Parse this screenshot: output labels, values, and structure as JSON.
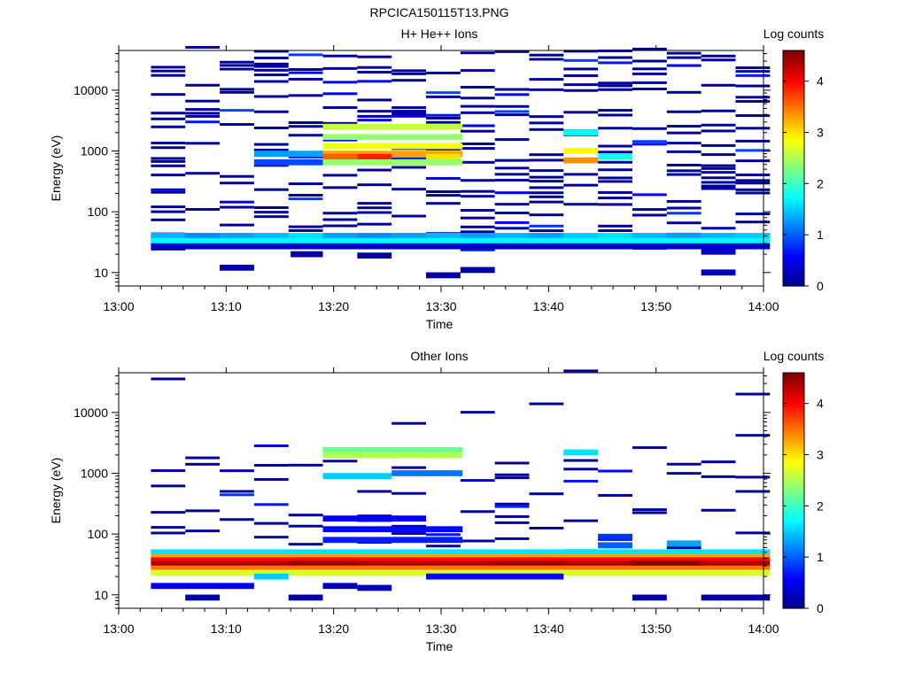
{
  "figure_title": "RPCICA150115T13.PNG",
  "colormap": [
    "#00008f",
    "#0000ff",
    "#0080ff",
    "#00ffff",
    "#80ff80",
    "#ffff00",
    "#ff8000",
    "#ff0000",
    "#800000"
  ],
  "chart_data": [
    {
      "type": "heatmap",
      "title": "H+ He++ Ions",
      "xlabel": "Time",
      "ylabel": "Energy (eV)",
      "x_ticks": [
        "13:00",
        "13:10",
        "13:20",
        "13:30",
        "13:40",
        "13:50",
        "14:00"
      ],
      "y_ticks": [
        "10",
        "100",
        "1000",
        "10000"
      ],
      "y_scale": "log",
      "ylim": [
        6,
        45000
      ],
      "colorbar": {
        "label": "Log counts",
        "ticks": [
          "0",
          "1",
          "2",
          "3",
          "4"
        ],
        "range": [
          0,
          4.6
        ]
      },
      "time_columns": [
        "13:03",
        "13:06",
        "13:09",
        "13:12",
        "13:16",
        "13:19",
        "13:22",
        "13:25",
        "13:28",
        "13:31",
        "13:35",
        "13:38",
        "13:41",
        "13:44",
        "13:47",
        "13:50",
        "13:54",
        "13:57",
        "14:00"
      ],
      "cells": [
        {
          "t0": 3.0,
          "t1": 6.2,
          "e": 40,
          "v": 1.4
        },
        {
          "t0": 6.2,
          "t1": 9.4,
          "e": 40,
          "v": 1.2
        },
        {
          "t0": 9.4,
          "t1": 12.6,
          "e": 40,
          "v": 1.3
        },
        {
          "t0": 12.6,
          "t1": 15.8,
          "e": 40,
          "v": 1.4
        },
        {
          "t0": 15.8,
          "t1": 19.0,
          "e": 40,
          "v": 1.6
        },
        {
          "t0": 19.0,
          "t1": 22.2,
          "e": 40,
          "v": 1.3
        },
        {
          "t0": 22.2,
          "t1": 25.4,
          "e": 40,
          "v": 1.2
        },
        {
          "t0": 25.4,
          "t1": 28.6,
          "e": 40,
          "v": 1.3
        },
        {
          "t0": 28.6,
          "t1": 31.8,
          "e": 40,
          "v": 1.4
        },
        {
          "t0": 31.8,
          "t1": 35.0,
          "e": 40,
          "v": 1.3
        },
        {
          "t0": 35.0,
          "t1": 38.2,
          "e": 40,
          "v": 1.4
        },
        {
          "t0": 38.2,
          "t1": 41.4,
          "e": 40,
          "v": 1.3
        },
        {
          "t0": 41.4,
          "t1": 44.6,
          "e": 40,
          "v": 1.5
        },
        {
          "t0": 44.6,
          "t1": 47.8,
          "e": 40,
          "v": 1.6
        },
        {
          "t0": 47.8,
          "t1": 51.0,
          "e": 40,
          "v": 1.4
        },
        {
          "t0": 51.0,
          "t1": 54.2,
          "e": 40,
          "v": 1.3
        },
        {
          "t0": 54.2,
          "t1": 57.4,
          "e": 40,
          "v": 1.4
        },
        {
          "t0": 57.4,
          "t1": 60.6,
          "e": 40,
          "v": 1.5
        },
        {
          "t0": 3.0,
          "t1": 60.6,
          "e": 33,
          "v": 1.7
        },
        {
          "t0": 3.0,
          "t1": 60.6,
          "e": 27,
          "v": 0.3
        },
        {
          "t0": 19.0,
          "t1": 32.0,
          "e": 2500,
          "v": 2.6
        },
        {
          "t0": 19.0,
          "t1": 32.0,
          "e": 1700,
          "v": 2.4
        },
        {
          "t0": 19.0,
          "t1": 32.0,
          "e": 1200,
          "v": 2.8
        },
        {
          "t0": 19.0,
          "t1": 32.0,
          "e": 900,
          "v": 3.3
        },
        {
          "t0": 22.2,
          "t1": 25.4,
          "e": 800,
          "v": 3.9
        },
        {
          "t0": 19.0,
          "t1": 22.2,
          "e": 800,
          "v": 3.6
        },
        {
          "t0": 28.6,
          "t1": 31.8,
          "e": 800,
          "v": 3.0
        },
        {
          "t0": 19.0,
          "t1": 32.0,
          "e": 650,
          "v": 2.4
        },
        {
          "t0": 12.6,
          "t1": 19.0,
          "e": 900,
          "v": 1.3
        },
        {
          "t0": 12.6,
          "t1": 19.0,
          "e": 650,
          "v": 0.9
        },
        {
          "t0": 41.4,
          "t1": 44.6,
          "e": 2000,
          "v": 1.7
        },
        {
          "t0": 41.4,
          "t1": 44.6,
          "e": 1000,
          "v": 2.9
        },
        {
          "t0": 41.4,
          "t1": 44.6,
          "e": 700,
          "v": 3.4
        },
        {
          "t0": 44.6,
          "t1": 47.8,
          "e": 800,
          "v": 1.8
        },
        {
          "t0": 9.4,
          "t1": 12.6,
          "e": 12,
          "v": 0.2
        },
        {
          "t0": 16.0,
          "t1": 19.0,
          "e": 20,
          "v": 0.1
        },
        {
          "t0": 22.2,
          "t1": 25.4,
          "e": 19,
          "v": 0.1
        },
        {
          "t0": 28.6,
          "t1": 31.8,
          "e": 9,
          "v": 0.1
        },
        {
          "t0": 31.8,
          "t1": 35.0,
          "e": 11,
          "v": 0.1
        },
        {
          "t0": 54.2,
          "t1": 57.4,
          "e": 10,
          "v": 0.2
        },
        {
          "t0": 54.2,
          "t1": 57.4,
          "e": 22,
          "v": 0.3
        }
      ]
    },
    {
      "type": "heatmap",
      "title": "Other Ions",
      "xlabel": "Time",
      "ylabel": "Energy (eV)",
      "x_ticks": [
        "13:00",
        "13:10",
        "13:20",
        "13:30",
        "13:40",
        "13:50",
        "14:00"
      ],
      "y_ticks": [
        "10",
        "100",
        "1000",
        "10000"
      ],
      "y_scale": "log",
      "ylim": [
        6,
        45000
      ],
      "colorbar": {
        "label": "Log counts",
        "ticks": [
          "0",
          "1",
          "2",
          "3",
          "4"
        ],
        "range": [
          0,
          4.6
        ]
      },
      "cells": [
        {
          "t0": 3.0,
          "t1": 60.6,
          "e": 50,
          "v": 1.6
        },
        {
          "t0": 3.0,
          "t1": 60.6,
          "e": 42,
          "v": 3.3
        },
        {
          "t0": 3.0,
          "t1": 60.6,
          "e": 37,
          "v": 4.0
        },
        {
          "t0": 3.0,
          "t1": 60.6,
          "e": 32,
          "v": 4.4
        },
        {
          "t0": 15.8,
          "t1": 22.2,
          "e": 32,
          "v": 4.5
        },
        {
          "t0": 35.0,
          "t1": 41.4,
          "e": 32,
          "v": 4.5
        },
        {
          "t0": 47.8,
          "t1": 54.2,
          "e": 32,
          "v": 4.6
        },
        {
          "t0": 3.0,
          "t1": 60.6,
          "e": 27,
          "v": 3.5
        },
        {
          "t0": 3.0,
          "t1": 60.6,
          "e": 23,
          "v": 2.7
        },
        {
          "t0": 12.6,
          "t1": 15.8,
          "e": 20,
          "v": 1.5
        },
        {
          "t0": 28.6,
          "t1": 41.4,
          "e": 20,
          "v": 0.6
        },
        {
          "t0": 3.0,
          "t1": 12.6,
          "e": 14,
          "v": 0.5
        },
        {
          "t0": 19.0,
          "t1": 22.2,
          "e": 14,
          "v": 0.2
        },
        {
          "t0": 22.2,
          "t1": 25.4,
          "e": 13,
          "v": 0.2
        },
        {
          "t0": 6.2,
          "t1": 9.4,
          "e": 9,
          "v": 0.1
        },
        {
          "t0": 15.8,
          "t1": 19.0,
          "e": 9,
          "v": 0.1
        },
        {
          "t0": 47.8,
          "t1": 51.0,
          "e": 9,
          "v": 0.1
        },
        {
          "t0": 54.2,
          "t1": 60.6,
          "e": 9,
          "v": 0.1
        },
        {
          "t0": 19.0,
          "t1": 32.0,
          "e": 2400,
          "v": 2.2
        },
        {
          "t0": 19.0,
          "t1": 32.0,
          "e": 2000,
          "v": 2.5
        },
        {
          "t0": 19.0,
          "t1": 25.4,
          "e": 900,
          "v": 1.5
        },
        {
          "t0": 25.4,
          "t1": 32.0,
          "e": 1000,
          "v": 1.1
        },
        {
          "t0": 41.4,
          "t1": 44.6,
          "e": 2200,
          "v": 1.6
        },
        {
          "t0": 19.0,
          "t1": 28.6,
          "e": 180,
          "v": 0.5
        },
        {
          "t0": 19.0,
          "t1": 32.0,
          "e": 120,
          "v": 0.6
        },
        {
          "t0": 19.0,
          "t1": 32.0,
          "e": 80,
          "v": 0.7
        },
        {
          "t0": 44.6,
          "t1": 47.8,
          "e": 90,
          "v": 0.8
        },
        {
          "t0": 44.6,
          "t1": 47.8,
          "e": 65,
          "v": 1.0
        },
        {
          "t0": 51.0,
          "t1": 54.2,
          "e": 70,
          "v": 1.3
        }
      ]
    }
  ]
}
